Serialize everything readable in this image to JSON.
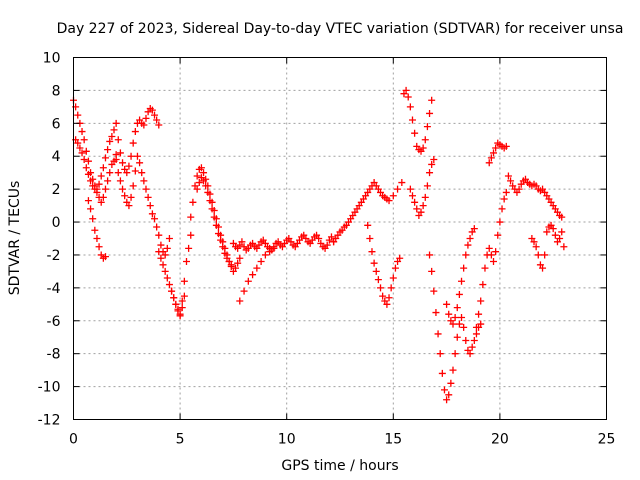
{
  "chart_data": {
    "type": "scatter",
    "title": "Day 227 of 2023, Sidereal Day-to-day VTEC variation (SDTVAR) for receiver unsa",
    "xlabel": "GPS time / hours",
    "ylabel": "SDTVAR / TECUs",
    "xlim": [
      0,
      25
    ],
    "ylim": [
      -12,
      10
    ],
    "xticks": [
      0,
      5,
      10,
      15,
      20,
      25
    ],
    "yticks": [
      -12,
      -10,
      -8,
      -6,
      -4,
      -2,
      0,
      2,
      4,
      6,
      8,
      10
    ],
    "grid": true,
    "marker": "+",
    "series_color": "#ff0000",
    "series": [
      {
        "name": "SDTVAR",
        "x": [
          0.0,
          0.1,
          0.2,
          0.3,
          0.4,
          0.5,
          0.6,
          0.7,
          0.8,
          0.9,
          1.0,
          1.1,
          1.2,
          1.3,
          1.4,
          1.5,
          1.6,
          1.7,
          1.8,
          1.9,
          2.0,
          2.1,
          2.2,
          2.3,
          2.4,
          2.5,
          2.6,
          2.7,
          2.8,
          2.9,
          3.0,
          3.1,
          3.2,
          3.3,
          3.4,
          3.5,
          3.6,
          3.7,
          3.8,
          3.9,
          4.0,
          0.1,
          0.2,
          0.3,
          0.4,
          0.5,
          0.6,
          0.7,
          0.8,
          0.9,
          1.0,
          1.1,
          1.2,
          1.3,
          1.4,
          1.5,
          1.6,
          1.7,
          1.8,
          1.9,
          2.0,
          2.0,
          2.1,
          2.2,
          2.3,
          2.4,
          2.5,
          2.6,
          2.7,
          2.8,
          2.9,
          3.0,
          3.1,
          3.2,
          3.3,
          3.4,
          3.5,
          3.6,
          3.7,
          3.8,
          3.9,
          4.0,
          4.1,
          4.2,
          4.3,
          4.4,
          4.5,
          0.7,
          0.8,
          0.9,
          1.0,
          1.1,
          1.2,
          1.3,
          1.4,
          1.5,
          4.0,
          4.1,
          4.2,
          4.3,
          4.4,
          4.5,
          4.6,
          4.7,
          4.8,
          4.9,
          5.0,
          5.1,
          5.2,
          5.3,
          5.4,
          5.5,
          4.6,
          4.7,
          4.8,
          4.9,
          5.0,
          5.1,
          5.2,
          5.5,
          5.6,
          5.7,
          5.8,
          5.9,
          6.0,
          6.1,
          6.2,
          6.3,
          6.4,
          6.5,
          6.6,
          6.7,
          6.8,
          6.9,
          7.0,
          7.1,
          7.2,
          7.3,
          7.4,
          7.5,
          7.6,
          7.7,
          7.8,
          5.8,
          5.9,
          6.0,
          6.1,
          6.2,
          6.3,
          6.4,
          6.5,
          6.6,
          6.7,
          6.8,
          6.9,
          7.0,
          7.1,
          7.2,
          7.3,
          7.4,
          7.5,
          7.6,
          7.7,
          7.8,
          7.9,
          8.0,
          8.1,
          8.2,
          8.3,
          8.4,
          8.5,
          8.6,
          8.7,
          8.8,
          8.9,
          9.0,
          9.1,
          9.2,
          9.3,
          9.4,
          9.5,
          9.6,
          9.7,
          9.8,
          9.9,
          10.0,
          10.1,
          10.2,
          10.3,
          10.4,
          10.5,
          10.6,
          10.7,
          10.8,
          10.9,
          11.0,
          11.1,
          11.2,
          11.3,
          11.4,
          11.5,
          11.6,
          11.7,
          11.8,
          11.9,
          12.0,
          12.1,
          12.2,
          7.8,
          8.0,
          8.2,
          8.4,
          8.6,
          8.8,
          9.0,
          9.2,
          9.4,
          12.2,
          12.3,
          12.4,
          12.5,
          12.6,
          12.7,
          12.8,
          12.9,
          13.0,
          13.1,
          13.2,
          13.3,
          13.4,
          13.5,
          13.6,
          13.7,
          13.8,
          13.9,
          14.0,
          14.1,
          14.2,
          14.3,
          14.4,
          14.5,
          14.6,
          14.7,
          14.8,
          15.0,
          15.2,
          15.4,
          13.8,
          13.9,
          14.0,
          14.1,
          14.2,
          14.3,
          14.4,
          14.5,
          14.6,
          14.7,
          14.8,
          14.9,
          15.0,
          15.1,
          15.2,
          15.3,
          15.5,
          15.6,
          15.7,
          15.8,
          15.9,
          16.0,
          16.1,
          16.2,
          16.3,
          16.4,
          16.5,
          16.6,
          16.7,
          16.8,
          15.8,
          15.9,
          16.0,
          16.1,
          16.2,
          16.3,
          16.4,
          16.5,
          16.6,
          16.7,
          16.8,
          16.9,
          16.7,
          16.8,
          16.9,
          17.0,
          17.1,
          17.2,
          17.3,
          17.4,
          17.5,
          17.6,
          17.7,
          17.8,
          17.9,
          18.0,
          18.1,
          18.2,
          18.3,
          18.4,
          18.5,
          18.6,
          18.7,
          18.8,
          18.9,
          19.0,
          19.1,
          17.5,
          17.6,
          17.7,
          17.8,
          17.9,
          18.0,
          18.1,
          18.2,
          18.3,
          18.4,
          18.5,
          18.6,
          18.7,
          18.8,
          18.9,
          19.0,
          19.1,
          19.2,
          19.3,
          19.4,
          19.5,
          19.6,
          19.7,
          19.8,
          19.9,
          20.0,
          20.1,
          20.2,
          20.3,
          19.5,
          19.6,
          19.7,
          19.8,
          19.9,
          20.0,
          20.1,
          20.2,
          20.3,
          20.4,
          20.5,
          20.6,
          20.7,
          20.8,
          20.9,
          21.0,
          21.1,
          21.2,
          21.3,
          21.4,
          21.5,
          21.6,
          21.7,
          21.8,
          21.9,
          22.0,
          22.1,
          22.2,
          22.3,
          22.4,
          22.5,
          22.6,
          22.7,
          22.8,
          22.9,
          21.5,
          21.6,
          21.7,
          21.8,
          21.9,
          22.0,
          22.1,
          22.2,
          22.3,
          22.4,
          22.5,
          22.6,
          22.7,
          22.8,
          22.9,
          23.0
        ],
        "y": [
          7.4,
          7.0,
          6.5,
          6.0,
          5.5,
          5.0,
          4.3,
          3.7,
          3.0,
          2.6,
          2.2,
          2.0,
          2.3,
          2.8,
          3.3,
          3.9,
          4.4,
          4.9,
          5.2,
          5.6,
          6.0,
          5.0,
          4.2,
          3.6,
          3.2,
          3.0,
          3.4,
          4.0,
          4.8,
          5.5,
          6.0,
          6.2,
          6.0,
          5.9,
          6.3,
          6.7,
          6.9,
          6.8,
          6.5,
          6.2,
          5.9,
          5.0,
          4.8,
          4.5,
          4.2,
          3.8,
          3.3,
          2.9,
          2.5,
          2.2,
          2.0,
          1.8,
          1.5,
          1.2,
          1.5,
          2.0,
          2.5,
          3.0,
          3.5,
          3.7,
          4.1,
          3.8,
          3.0,
          2.5,
          2.0,
          1.6,
          1.2,
          1.0,
          1.5,
          2.2,
          3.1,
          4.0,
          3.6,
          3.0,
          2.5,
          2.0,
          1.5,
          1.0,
          0.5,
          0.2,
          -0.3,
          -0.8,
          -1.4,
          -1.8,
          -2.0,
          -1.6,
          -1.0,
          1.3,
          0.8,
          0.2,
          -0.5,
          -1.0,
          -1.5,
          -2.0,
          -2.2,
          -2.1,
          -1.8,
          -2.2,
          -2.6,
          -3.0,
          -3.4,
          -3.8,
          -4.2,
          -4.6,
          -5.0,
          -5.4,
          -5.6,
          -4.8,
          -3.6,
          -2.4,
          -1.6,
          -0.8,
          -4.2,
          -4.6,
          -5.0,
          -5.3,
          -5.7,
          -5.2,
          -4.5,
          0.3,
          1.2,
          2.2,
          2.8,
          3.2,
          3.3,
          3.0,
          2.6,
          2.2,
          1.7,
          1.2,
          0.7,
          0.2,
          -0.3,
          -0.8,
          -1.2,
          -1.6,
          -2.0,
          -2.4,
          -2.7,
          -3.0,
          -2.8,
          -2.5,
          -2.2,
          2.0,
          2.4,
          2.7,
          2.5,
          2.2,
          1.8,
          1.3,
          0.8,
          0.3,
          -0.2,
          -0.7,
          -1.1,
          -1.5,
          -1.9,
          -2.2,
          -2.4,
          -2.6,
          -1.3,
          -1.5,
          -1.6,
          -1.4,
          -1.2,
          -1.5,
          -1.7,
          -1.6,
          -1.4,
          -1.3,
          -1.5,
          -1.6,
          -1.4,
          -1.2,
          -1.1,
          -1.3,
          -1.5,
          -1.6,
          -1.7,
          -1.5,
          -1.3,
          -1.2,
          -1.4,
          -1.5,
          -1.3,
          -1.1,
          -1.0,
          -1.2,
          -1.4,
          -1.5,
          -1.3,
          -1.1,
          -0.9,
          -0.8,
          -1.0,
          -1.2,
          -1.3,
          -1.1,
          -0.9,
          -0.8,
          -1.0,
          -1.3,
          -1.5,
          -1.6,
          -1.4,
          -1.1,
          -0.9,
          -1.2,
          -4.8,
          -4.2,
          -3.6,
          -3.2,
          -2.8,
          -2.4,
          -2.0,
          -1.8,
          -1.6,
          -1.2,
          -1.0,
          -0.8,
          -0.6,
          -0.5,
          -0.3,
          -0.2,
          0.0,
          0.2,
          0.4,
          0.6,
          0.8,
          1.0,
          1.2,
          1.4,
          1.6,
          1.8,
          2.0,
          2.2,
          2.4,
          2.2,
          2.0,
          1.8,
          1.6,
          1.5,
          1.4,
          1.3,
          1.6,
          2.0,
          2.4,
          -0.2,
          -1.0,
          -1.8,
          -2.5,
          -3.0,
          -3.5,
          -4.0,
          -4.5,
          -4.8,
          -5.0,
          -4.6,
          -4.0,
          -3.4,
          -2.8,
          -2.4,
          -2.2,
          7.8,
          8.0,
          7.6,
          7.0,
          6.2,
          5.4,
          4.6,
          4.4,
          4.3,
          4.5,
          5.0,
          5.8,
          6.6,
          7.4,
          2.0,
          1.6,
          1.2,
          0.8,
          0.4,
          0.6,
          1.0,
          1.5,
          2.2,
          3.0,
          3.5,
          3.8,
          -2.0,
          -3.0,
          -4.2,
          -5.5,
          -6.8,
          -8.0,
          -9.2,
          -10.2,
          -10.8,
          -10.5,
          -9.8,
          -9.0,
          -8.0,
          -7.0,
          -6.2,
          -5.8,
          -6.4,
          -7.2,
          -7.8,
          -8.0,
          -7.6,
          -7.2,
          -6.8,
          -6.4,
          -6.2,
          -5.0,
          -5.6,
          -6.0,
          -6.2,
          -5.8,
          -5.2,
          -4.4,
          -3.6,
          -2.8,
          -2.0,
          -1.4,
          -1.0,
          -0.6,
          -0.4,
          -6.4,
          -5.6,
          -4.8,
          -3.8,
          -2.8,
          -2.0,
          -1.6,
          -2.0,
          -2.4,
          -1.8,
          -0.8,
          0.0,
          0.8,
          1.4,
          1.8,
          3.6,
          3.9,
          4.2,
          4.5,
          4.8,
          4.7,
          4.6,
          4.5,
          4.6,
          2.8,
          2.5,
          2.2,
          2.0,
          1.8,
          2.0,
          2.3,
          2.5,
          2.6,
          2.4,
          2.3,
          2.2,
          2.3,
          2.2,
          2.0,
          1.9,
          2.0,
          1.8,
          1.6,
          1.4,
          1.2,
          1.0,
          0.8,
          0.6,
          0.4,
          0.3,
          -1.0,
          -1.2,
          -1.5,
          -2.0,
          -2.6,
          -2.8,
          -2.0,
          -0.6,
          -0.3,
          -0.2,
          -0.4,
          -0.8,
          -1.2,
          -1.0,
          -0.6,
          -1.5
        ]
      }
    ]
  }
}
